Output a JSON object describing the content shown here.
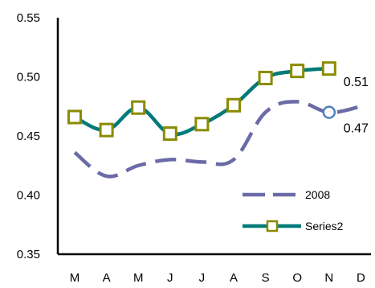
{
  "chart_data": {
    "type": "line",
    "categories": [
      "M",
      "A",
      "M",
      "J",
      "J",
      "A",
      "S",
      "O",
      "N",
      "D"
    ],
    "ylim": [
      0.35,
      0.55
    ],
    "y_ticks": [
      "0.55",
      "0.50",
      "0.45",
      "0.40",
      "0.35"
    ],
    "grid": false,
    "legend_position": "bottom-right",
    "series": [
      {
        "name": "2008",
        "values": [
          0.436,
          0.416,
          0.425,
          0.43,
          0.428,
          0.43,
          0.47,
          0.479,
          0.47,
          0.475
        ],
        "color": "#6b6ba8",
        "style": "dashed"
      },
      {
        "name": "Series2",
        "values": [
          0.466,
          0.455,
          0.474,
          0.452,
          0.46,
          0.476,
          0.499,
          0.505,
          0.507,
          null
        ],
        "color": "#007a78",
        "marker_color": "#8b8b00",
        "style": "solid-square-markers"
      }
    ],
    "annotations": [
      {
        "text": "0.51",
        "series": 1,
        "index": 8
      },
      {
        "text": "0.47",
        "series": 0,
        "index": 8
      }
    ],
    "highlighted_point": {
      "series": 0,
      "index": 8,
      "color": "#4f81bd"
    }
  }
}
